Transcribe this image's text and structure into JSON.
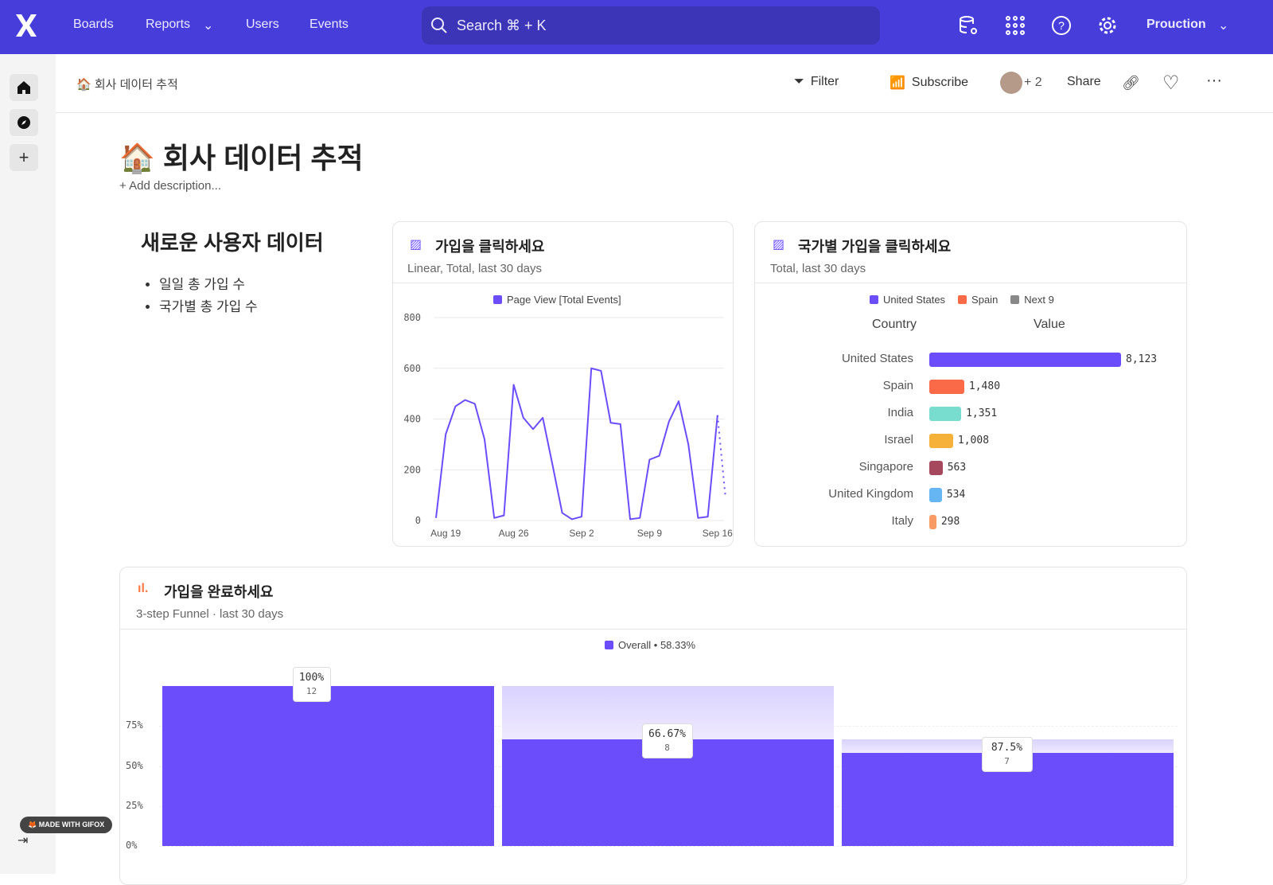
{
  "nav": {
    "items": [
      "Boards",
      "Reports",
      "Users",
      "Events"
    ],
    "search_placeholder": "Search  ⌘ + K",
    "project": "Prouction"
  },
  "header": {
    "breadcrumb": "🏠 회사 데이터 추적",
    "filter": "Filter",
    "subscribe": "Subscribe",
    "avatar_extra": "+ 2",
    "share": "Share"
  },
  "page": {
    "title": "🏠 회사 데이터 추적",
    "add_description": "+ Add description..."
  },
  "text_card": {
    "title": "새로운 사용자 데이터",
    "bullets": [
      "일일 총 가입 수",
      "국가별 총 가입 수"
    ]
  },
  "line_card": {
    "title": "가입을 클릭하세요",
    "subtitle": "Linear, Total, last 30 days"
  },
  "bar_card": {
    "title": "국가별 가입을 클릭하세요",
    "subtitle": "Total, last 30 days",
    "col_country": "Country",
    "col_value": "Value"
  },
  "funnel_card": {
    "title": "가입을 완료하세요",
    "subtitle": "3-step Funnel · last 30 days"
  },
  "badge": "MADE WITH GIFOX",
  "colors": {
    "accent": "#6c4dfc",
    "topbar": "#473ddb"
  },
  "chart_data": [
    {
      "type": "line",
      "legend": [
        "Page View [Total Events]"
      ],
      "ylim": [
        0,
        800
      ],
      "yticks": [
        "0",
        "200",
        "400",
        "600",
        "800"
      ],
      "xticks": [
        "Aug 19",
        "Aug 26",
        "Sep 2",
        "Sep 9",
        "Sep 16"
      ],
      "x": [
        "Aug 18",
        "Aug 19",
        "Aug 20",
        "Aug 21",
        "Aug 22",
        "Aug 23",
        "Aug 24",
        "Aug 25",
        "Aug 26",
        "Aug 27",
        "Aug 28",
        "Aug 29",
        "Aug 30",
        "Aug 31",
        "Sep 1",
        "Sep 2",
        "Sep 3",
        "Sep 4",
        "Sep 5",
        "Sep 6",
        "Sep 7",
        "Sep 8",
        "Sep 9",
        "Sep 10",
        "Sep 11",
        "Sep 12",
        "Sep 13",
        "Sep 14",
        "Sep 15",
        "Sep 16"
      ],
      "series": [
        {
          "name": "Page View [Total Events]",
          "color": "#6c4dfc",
          "values": [
            10,
            340,
            450,
            475,
            460,
            320,
            10,
            20,
            535,
            405,
            360,
            405,
            220,
            30,
            5,
            15,
            600,
            590,
            385,
            380,
            5,
            10,
            240,
            255,
            390,
            470,
            300,
            10,
            15,
            415
          ],
          "partial_next": 100
        }
      ]
    },
    {
      "type": "bar",
      "orientation": "horizontal",
      "legend": [
        {
          "name": "United States",
          "color": "#6c4dfc"
        },
        {
          "name": "Spain",
          "color": "#fa6a48"
        },
        {
          "name": "Next 9",
          "color": "#888888"
        }
      ],
      "categories": [
        "United States",
        "Spain",
        "India",
        "Israel",
        "Singapore",
        "United Kingdom",
        "Italy"
      ],
      "values": [
        8123,
        1480,
        1351,
        1008,
        563,
        534,
        298
      ],
      "labels": [
        "8,123",
        "1,480",
        "1,351",
        "1,008",
        "563",
        "534",
        "298"
      ],
      "colors": [
        "#6c4dfc",
        "#fa6a48",
        "#78dccf",
        "#f6b13a",
        "#a6485d",
        "#67b6f4",
        "#f99b64"
      ]
    },
    {
      "type": "bar",
      "subtype": "funnel",
      "legend": [
        "Overall • 58.33%"
      ],
      "yticks": [
        "0%",
        "25%",
        "50%",
        "75%"
      ],
      "ylim": [
        0,
        100
      ],
      "values": [
        100,
        66.67,
        58.33
      ],
      "step_labels": [
        "100%",
        "66.67%",
        "87.5%"
      ],
      "counts": [
        "12",
        "8",
        "7"
      ],
      "color": "#6c4dfc"
    }
  ]
}
